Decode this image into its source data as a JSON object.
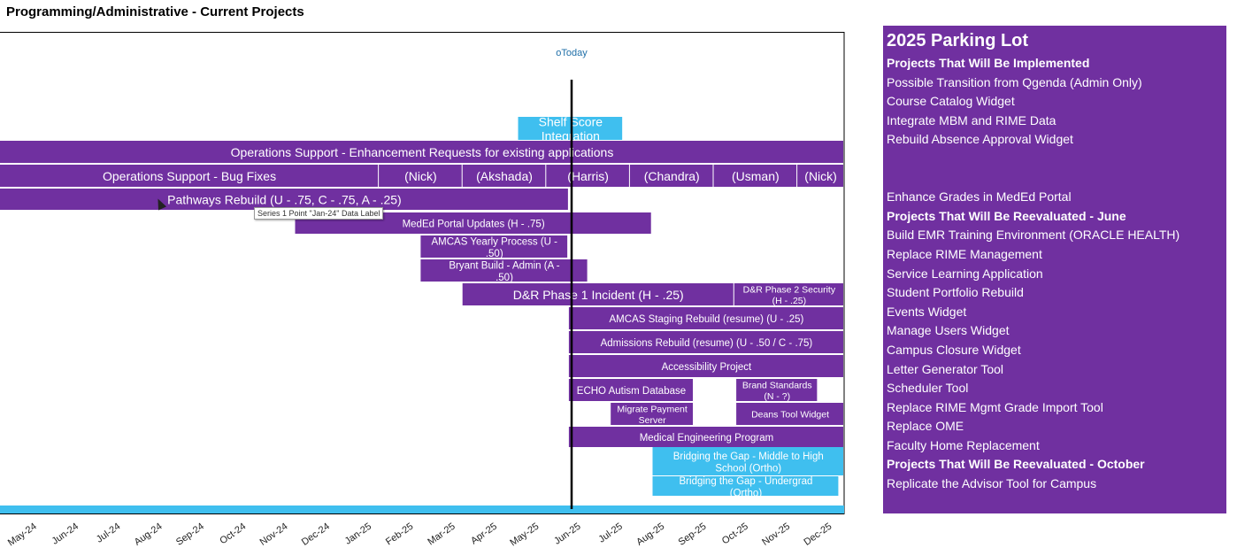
{
  "page_title": "Programming/Administrative - Current Projects",
  "chart_data": {
    "type": "gantt",
    "x_axis": {
      "tick_labels": [
        "May-24",
        "Jun-24",
        "Jul-24",
        "Aug-24",
        "Sep-24",
        "Oct-24",
        "Nov-24",
        "Dec-24",
        "Jan-25",
        "Feb-25",
        "Mar-25",
        "Apr-25",
        "May-25",
        "Jun-25",
        "Jul-25",
        "Aug-25",
        "Sep-25",
        "Oct-25",
        "Nov-25",
        "Dec-25"
      ]
    },
    "today_marker": {
      "label": "oToday",
      "date": "Jun-25"
    },
    "colors": {
      "purple": "#7030a0",
      "light_blue": "#3fbfef",
      "axis_bar": "#3fbfef"
    },
    "tasks": [
      {
        "label": "Shelf Score Integration",
        "start": "2025-04-25",
        "end": "2025-07-10",
        "row": 0,
        "color": "light_blue"
      },
      {
        "label": "Operations Support - Enhancement Requests for existing applications",
        "start": "2024-04-01",
        "end": "2025-12-31",
        "row": 1,
        "color": "purple"
      },
      {
        "label": "Operations Support - Bug Fixes",
        "start": "2024-04-01",
        "end": "2025-01-15",
        "row": 2,
        "color": "purple"
      },
      {
        "label": "(Nick)",
        "start": "2025-01-15",
        "end": "2025-03-15",
        "row": 2,
        "color": "purple"
      },
      {
        "label": "(Akshada)",
        "start": "2025-03-15",
        "end": "2025-05-15",
        "row": 2,
        "color": "purple"
      },
      {
        "label": "(Harris)",
        "start": "2025-05-15",
        "end": "2025-07-15",
        "row": 2,
        "color": "purple"
      },
      {
        "label": "(Chandra)",
        "start": "2025-07-15",
        "end": "2025-09-15",
        "row": 2,
        "color": "purple"
      },
      {
        "label": "(Usman)",
        "start": "2025-09-15",
        "end": "2025-11-15",
        "row": 2,
        "color": "purple"
      },
      {
        "label": "(Nick)",
        "start": "2025-11-15",
        "end": "2025-12-31",
        "row": 2,
        "color": "purple"
      },
      {
        "label": "Pathways Rebuild (U - .75, C - .75, A - .25)",
        "start": "2024-04-01",
        "end": "2025-06-01",
        "row": 3,
        "color": "purple"
      },
      {
        "label": "MedEd Portal Updates (H - .75)",
        "start": "2024-11-15",
        "end": "2025-07-31",
        "row": 4,
        "color": "purple"
      },
      {
        "label": "AMCAS Yearly Process (U - .50)",
        "start": "2025-02-15",
        "end": "2025-05-31",
        "row": 5,
        "color": "purple"
      },
      {
        "label": "Bryant Build - Admin (A - .50)",
        "start": "2025-02-15",
        "end": "2025-06-15",
        "row": 6,
        "color": "purple"
      },
      {
        "label": "D&R Phase 1 Incident (H - .25)",
        "start": "2025-03-15",
        "end": "2025-09-30",
        "row": 7,
        "color": "purple"
      },
      {
        "label": "D&R Phase 2 Security (H - .25)",
        "start": "2025-09-30",
        "end": "2025-12-31",
        "row": 7,
        "color": "purple"
      },
      {
        "label": "AMCAS Staging Rebuild (resume) (U - .25)",
        "start": "2025-06-01",
        "end": "2025-12-31",
        "row": 8,
        "color": "purple"
      },
      {
        "label": "Admissions Rebuild (resume) (U - .50 / C - .75)",
        "start": "2025-06-01",
        "end": "2025-12-31",
        "row": 9,
        "color": "purple"
      },
      {
        "label": "Accessibility Project",
        "start": "2025-06-01",
        "end": "2025-12-31",
        "row": 10,
        "color": "purple"
      },
      {
        "label": "ECHO Autism Database",
        "start": "2025-06-01",
        "end": "2025-08-31",
        "row": 11,
        "color": "purple"
      },
      {
        "label": "Brand Standards (N - ?)",
        "start": "2025-10-01",
        "end": "2025-11-30",
        "row": 11,
        "color": "purple"
      },
      {
        "label": "Migrate Payment Server",
        "start": "2025-07-01",
        "end": "2025-08-31",
        "row": 12,
        "color": "purple"
      },
      {
        "label": "Deans Tool Widget",
        "start": "2025-10-01",
        "end": "2025-12-31",
        "row": 12,
        "color": "purple"
      },
      {
        "label": "Medical Engineering Program",
        "start": "2025-06-01",
        "end": "2025-12-20",
        "row": 13,
        "color": "purple"
      },
      {
        "label": "Bridging the Gap - Middle to High School (Ortho)",
        "start": "2025-08-01",
        "end": "2025-12-31",
        "row": 14,
        "color": "light_blue"
      },
      {
        "label": "Bridging the Gap - Undergrad (Ortho)",
        "start": "2025-08-01",
        "end": "2025-12-15",
        "row": 15,
        "color": "light_blue"
      }
    ],
    "tooltip": "Series 1 Point \"Jan-24\" Data Label"
  },
  "parking_lot": {
    "title": "2025 Parking Lot",
    "lines": [
      {
        "text": "Projects That Will Be Implemented",
        "bold": true
      },
      {
        "text": "Possible Transition from Qgenda (Admin Only)",
        "bold": false
      },
      {
        "text": "Course Catalog Widget",
        "bold": false
      },
      {
        "text": "Integrate MBM and RIME Data",
        "bold": false
      },
      {
        "text": "Rebuild Absence Approval Widget",
        "bold": false
      },
      {
        "text": "",
        "bold": false
      },
      {
        "text": "",
        "bold": false
      },
      {
        "text": "Enhance Grades in MedEd Portal",
        "bold": false
      },
      {
        "text": "Projects That Will Be Reevaluated - June",
        "bold": true
      },
      {
        "text": "Build EMR Training Environment (ORACLE HEALTH)",
        "bold": false
      },
      {
        "text": "Replace RIME Management",
        "bold": false
      },
      {
        "text": "Service Learning Application",
        "bold": false
      },
      {
        "text": "Student Portfolio Rebuild",
        "bold": false
      },
      {
        "text": "Events Widget",
        "bold": false
      },
      {
        "text": "Manage Users Widget",
        "bold": false
      },
      {
        "text": "Campus Closure Widget",
        "bold": false
      },
      {
        "text": "Letter Generator Tool",
        "bold": false
      },
      {
        "text": "Scheduler Tool",
        "bold": false
      },
      {
        "text": "Replace RIME Mgmt Grade Import Tool",
        "bold": false
      },
      {
        "text": "Replace OME",
        "bold": false
      },
      {
        "text": "Faculty Home Replacement",
        "bold": false
      },
      {
        "text": "Projects That Will Be Reevaluated - October",
        "bold": true
      },
      {
        "text": "Replicate the Advisor Tool for Campus",
        "bold": false
      }
    ]
  }
}
